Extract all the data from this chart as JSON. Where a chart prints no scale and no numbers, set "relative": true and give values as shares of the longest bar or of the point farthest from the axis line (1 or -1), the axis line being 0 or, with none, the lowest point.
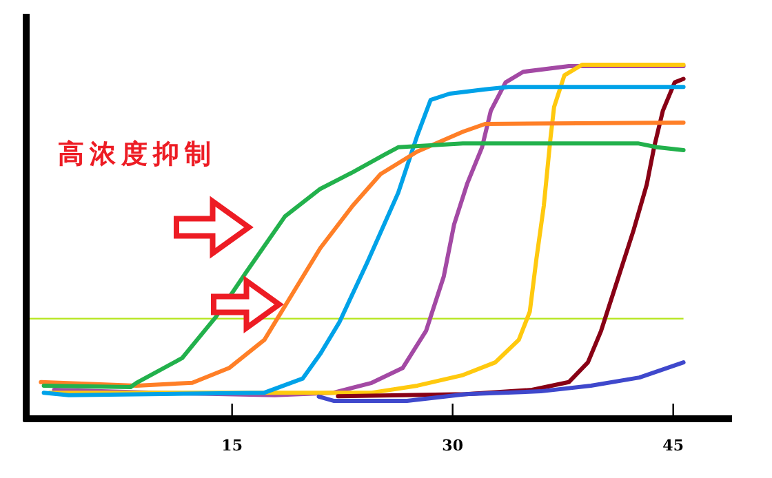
{
  "chart_data": {
    "type": "line",
    "relative": true,
    "xlim": [
      1,
      49
    ],
    "xticks": [
      15,
      30,
      45
    ],
    "tick_labels": "x",
    "line_style": "solid",
    "annotations": [
      "高浓度抑制"
    ],
    "ref_lines": [
      {
        "axis": "y",
        "value": 0.28,
        "color": "#b5e61d"
      }
    ],
    "series": [
      {
        "color": "#a349a4",
        "x": [
          2.9,
          9.75,
          17.9,
          21.9,
          24.5,
          26.6,
          28.2,
          29.4,
          30.1,
          31.0,
          32.0,
          32.6,
          33.6,
          34.8,
          37.9,
          45.7
        ],
        "values": [
          0.078,
          0.07,
          0.063,
          0.07,
          0.098,
          0.14,
          0.246,
          0.4,
          0.547,
          0.664,
          0.766,
          0.87,
          0.95,
          0.98,
          0.996,
          0.996
        ]
      },
      {
        "color": "#ffc90e",
        "x": [
          2.6,
          24.5,
          27.6,
          30.7,
          32.9,
          34.5,
          35.25,
          35.7,
          36.2,
          36.65,
          36.9,
          37.6,
          38.8,
          45.7
        ],
        "values": [
          0.07,
          0.07,
          0.09,
          0.12,
          0.156,
          0.22,
          0.3,
          0.45,
          0.6,
          0.79,
          0.88,
          0.97,
          1,
          1
        ]
      },
      {
        "color": "#880015",
        "x": [
          22.2,
          30.9,
          35.4,
          37.9,
          39.2,
          40.1,
          41.1,
          42.3,
          43.2,
          43.7,
          44.3,
          45.1,
          45.7
        ],
        "values": [
          0.06,
          0.066,
          0.078,
          0.1,
          0.156,
          0.246,
          0.375,
          0.53,
          0.66,
          0.766,
          0.87,
          0.95,
          0.96
        ]
      },
      {
        "color": "#3f48cc",
        "x": [
          20.9,
          21.9,
          26.9,
          30.9,
          36.0,
          39.4,
          42.7,
          45.7
        ],
        "values": [
          0.059,
          0.047,
          0.047,
          0.066,
          0.074,
          0.09,
          0.113,
          0.156
        ]
      },
      {
        "color": "#00a2e8",
        "x": [
          2.2,
          3.9,
          17.2,
          19.8,
          21.0,
          22.3,
          24.2,
          26.3,
          27.6,
          28.5,
          29.8,
          32.2,
          33.8,
          45.7
        ],
        "values": [
          0.07,
          0.063,
          0.07,
          0.11,
          0.18,
          0.27,
          0.44,
          0.637,
          0.8,
          0.9,
          0.918,
          0.93,
          0.937,
          0.937
        ]
      },
      {
        "color": "#ff7f27",
        "x": [
          2.0,
          8.5,
          12.3,
          14.8,
          17.2,
          19.1,
          21.0,
          23.2,
          25.1,
          27.6,
          30.7,
          32.2,
          45.7
        ],
        "values": [
          0.1,
          0.09,
          0.098,
          0.14,
          0.22,
          0.35,
          0.48,
          0.6,
          0.69,
          0.754,
          0.81,
          0.832,
          0.836
        ]
      },
      {
        "color": "#22b14c",
        "x": [
          2.2,
          8.1,
          8.5,
          11.6,
          13.9,
          16.0,
          18.6,
          21.0,
          23.2,
          25.4,
          26.3,
          30.7,
          42.6,
          43.9,
          45.7
        ],
        "values": [
          0.09,
          0.086,
          0.098,
          0.168,
          0.285,
          0.414,
          0.57,
          0.648,
          0.695,
          0.746,
          0.766,
          0.777,
          0.777,
          0.766,
          0.758
        ]
      }
    ]
  }
}
